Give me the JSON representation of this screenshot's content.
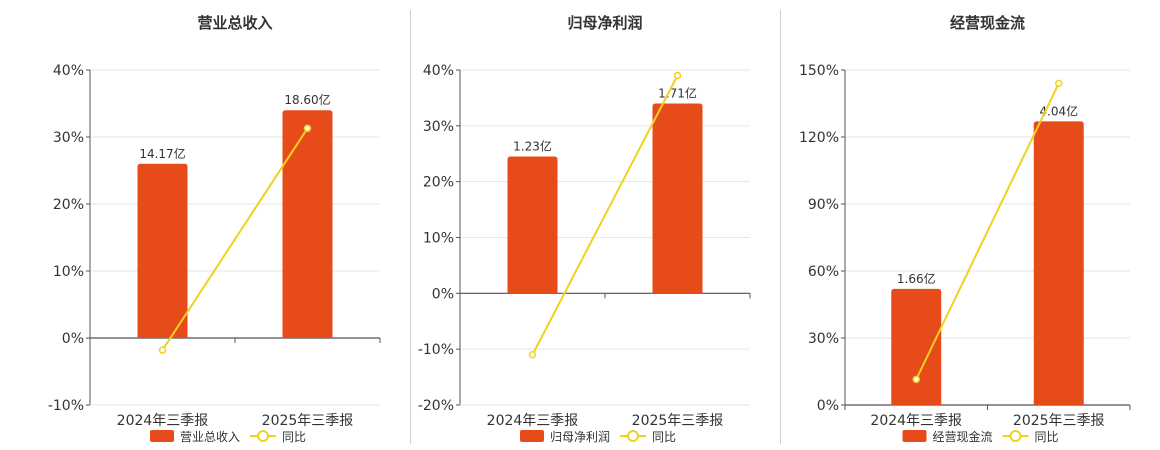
{
  "colors": {
    "bar": "#E84B1A",
    "line": "#F0D21E",
    "axis": "#555555",
    "grid": "#e6e6e6",
    "text": "#333333"
  },
  "line_label": "同比",
  "chart_data": [
    {
      "type": "bar",
      "title": "营业总收入",
      "categories": [
        "2024年三季报",
        "2025年三季报"
      ],
      "series": [
        {
          "name": "营业总收入",
          "type": "bar",
          "values": [
            26,
            34
          ],
          "labels": [
            "14.17亿",
            "18.60亿"
          ]
        },
        {
          "name": "同比",
          "type": "line",
          "values": [
            -1.8,
            31.3
          ]
        }
      ],
      "yticks": [
        "40%",
        "30%",
        "20%",
        "10%",
        "0%",
        "-10%"
      ],
      "ylim": [
        -10,
        40
      ],
      "legend": "bottom",
      "grid": true
    },
    {
      "type": "bar",
      "title": "归母净利润",
      "categories": [
        "2024年三季报",
        "2025年三季报"
      ],
      "series": [
        {
          "name": "归母净利润",
          "type": "bar",
          "values": [
            24.5,
            34
          ],
          "labels": [
            "1.23亿",
            "1.71亿"
          ]
        },
        {
          "name": "同比",
          "type": "line",
          "values": [
            -11,
            39
          ]
        }
      ],
      "yticks": [
        "40%",
        "30%",
        "20%",
        "10%",
        "0%",
        "-10%",
        "-20%"
      ],
      "ylim": [
        -20,
        40
      ],
      "legend": "bottom",
      "grid": true
    },
    {
      "type": "bar",
      "title": "经营现金流",
      "categories": [
        "2024年三季报",
        "2025年三季报"
      ],
      "series": [
        {
          "name": "经营现金流",
          "type": "bar",
          "values": [
            52,
            127
          ],
          "labels": [
            "1.66亿",
            "4.04亿"
          ]
        },
        {
          "name": "同比",
          "type": "line",
          "values": [
            11.5,
            144
          ]
        }
      ],
      "yticks": [
        "150%",
        "120%",
        "90%",
        "60%",
        "30%",
        "0%"
      ],
      "ylim": [
        0,
        150
      ],
      "legend": "bottom",
      "grid": true
    }
  ]
}
